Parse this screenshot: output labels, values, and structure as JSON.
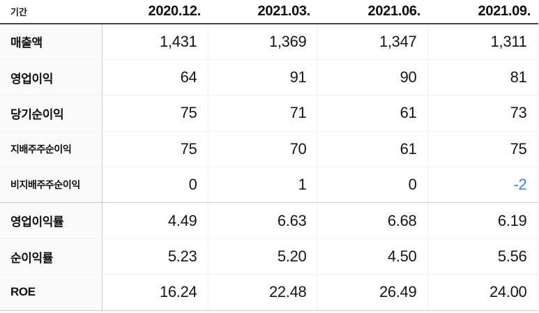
{
  "table": {
    "period_label": "기간",
    "columns": [
      "2020.12.",
      "2021.03.",
      "2021.06.",
      "2021.09."
    ],
    "rows": [
      {
        "label": "매출액",
        "values": [
          "1,431",
          "1,369",
          "1,347",
          "1,311"
        ]
      },
      {
        "label": "영업이익",
        "values": [
          "64",
          "91",
          "90",
          "81"
        ]
      },
      {
        "label": "당기순이익",
        "values": [
          "75",
          "71",
          "61",
          "73"
        ]
      },
      {
        "label": "지배주주순이익",
        "values": [
          "75",
          "70",
          "61",
          "75"
        ]
      },
      {
        "label": "비지배주주순이익",
        "values": [
          "0",
          "1",
          "0",
          "-2"
        ]
      },
      {
        "label": "영업이익률",
        "values": [
          "4.49",
          "6.63",
          "6.68",
          "6.19"
        ]
      },
      {
        "label": "순이익률",
        "values": [
          "5.23",
          "5.20",
          "4.50",
          "5.56"
        ]
      },
      {
        "label": "ROE",
        "values": [
          "16.24",
          "22.48",
          "26.49",
          "24.00"
        ]
      }
    ],
    "colors": {
      "negative_value": "#3d7df5",
      "header_rule": "#454545",
      "group_rule": "#c9c9c9",
      "label_column_bg": "#fafafa"
    }
  }
}
